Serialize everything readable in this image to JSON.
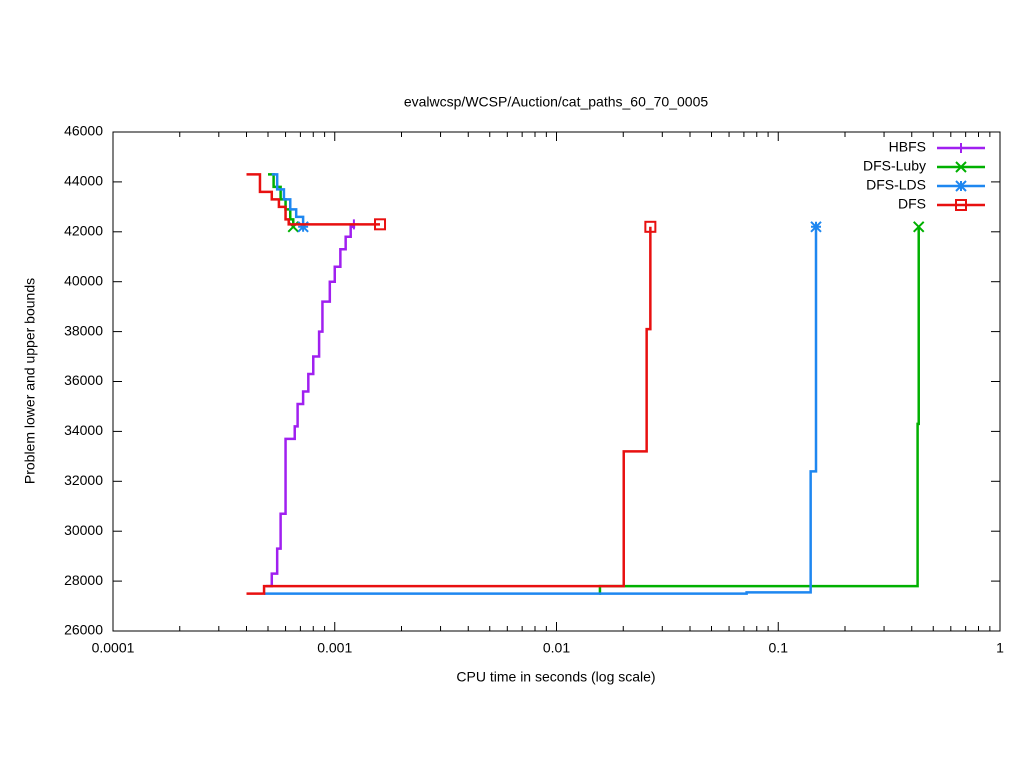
{
  "chart_data": {
    "type": "line",
    "steps": true,
    "log_x": true,
    "title": "evalwcsp/WCSP/Auction/cat_paths_60_70_0005",
    "xlabel": "CPU time in seconds (log scale)",
    "ylabel": "Problem lower and upper bounds",
    "xlim": [
      0.0001,
      1
    ],
    "xticks": [
      0.0001,
      0.001,
      0.01,
      0.1,
      1
    ],
    "ylim": [
      26000,
      46000
    ],
    "yticks": [
      26000,
      28000,
      30000,
      32000,
      34000,
      36000,
      38000,
      40000,
      42000,
      44000,
      46000
    ],
    "legend": "top-right",
    "series": [
      {
        "name": "HBFS",
        "color": "#a020f0",
        "marker": "plus",
        "x": [
          0.00049,
          0.00052,
          0.00055,
          0.00057,
          0.0006,
          0.00066,
          0.00068,
          0.00072,
          0.00076,
          0.0008,
          0.00085,
          0.00088,
          0.00095,
          0.001,
          0.00106,
          0.00112,
          0.00118,
          0.00122
        ],
        "values": [
          27800,
          28300,
          29300,
          30700,
          33700,
          34200,
          35100,
          35600,
          36300,
          37000,
          38000,
          39200,
          40000,
          40600,
          41300,
          41800,
          42200,
          42300
        ]
      },
      {
        "name": "DFS-Luby",
        "color": "#00b000",
        "marker": "x",
        "x": [
          0.0005,
          0.00053,
          0.00057,
          0.0006,
          0.00063,
          0.00065,
          null,
          0.0156,
          0.0157,
          0.425,
          0.43
        ],
        "values": [
          44300,
          43800,
          43300,
          42900,
          42500,
          42200,
          null,
          27500,
          27800,
          34300,
          42200
        ]
      },
      {
        "name": "DFS-LDS",
        "color": "#1e87f0",
        "marker": "star",
        "x": [
          0.00052,
          0.00055,
          0.00059,
          0.00063,
          0.00067,
          0.00072,
          null,
          0.00048,
          0.072,
          0.14,
          0.148
        ],
        "values": [
          44300,
          43700,
          43300,
          42900,
          42600,
          42200,
          null,
          27500,
          27550,
          32400,
          42200
        ]
      },
      {
        "name": "DFS",
        "color": "#e81010",
        "marker": "square",
        "x": [
          0.0004,
          0.00046,
          0.00052,
          0.00056,
          0.0006,
          0.00062,
          0.0016,
          null,
          0.0004,
          0.00048,
          0.0201,
          0.0255,
          0.0265
        ],
        "values": [
          44300,
          43600,
          43300,
          43000,
          42500,
          42300,
          42300,
          null,
          27500,
          27800,
          33200,
          38100,
          42200
        ]
      }
    ]
  }
}
